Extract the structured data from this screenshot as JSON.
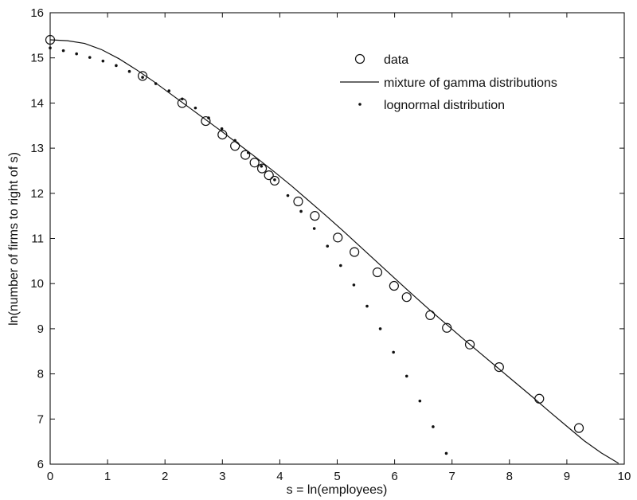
{
  "chart_data": {
    "type": "scatter",
    "title": "",
    "xlabel": "s = ln(employees)",
    "ylabel": "ln(number of firms to right of s)",
    "xlim": [
      0,
      10
    ],
    "ylim": [
      6,
      16
    ],
    "xticks": [
      "0",
      "1",
      "2",
      "3",
      "4",
      "5",
      "6",
      "7",
      "8",
      "9",
      "10"
    ],
    "yticks": [
      "6",
      "7",
      "8",
      "9",
      "10",
      "11",
      "12",
      "13",
      "14",
      "15",
      "16"
    ],
    "grid": false,
    "legend_position": "top-right",
    "legend": [
      "data",
      "mixture of gamma distributions",
      "lognormal distribution"
    ],
    "series": [
      {
        "name": "data",
        "style": "open-circle",
        "x": [
          0.0,
          1.61,
          2.3,
          2.71,
          3.0,
          3.22,
          3.4,
          3.56,
          3.69,
          3.81,
          3.91,
          4.32,
          4.61,
          5.01,
          5.3,
          5.7,
          5.99,
          6.21,
          6.62,
          6.91,
          7.31,
          7.82,
          8.52,
          9.21
        ],
        "y": [
          15.4,
          14.6,
          14.0,
          13.6,
          13.3,
          13.05,
          12.85,
          12.68,
          12.55,
          12.4,
          12.28,
          11.82,
          11.5,
          11.02,
          10.7,
          10.25,
          9.95,
          9.7,
          9.3,
          9.02,
          8.65,
          8.15,
          7.45,
          6.8
        ]
      },
      {
        "name": "mixture of gamma distributions",
        "style": "line",
        "x": [
          0.0,
          0.3,
          0.6,
          0.9,
          1.2,
          1.5,
          1.8,
          2.1,
          2.4,
          2.7,
          3.0,
          3.3,
          3.6,
          3.9,
          4.2,
          4.5,
          4.8,
          5.1,
          5.4,
          5.7,
          6.0,
          6.3,
          6.6,
          6.9,
          7.2,
          7.5,
          7.8,
          8.1,
          8.4,
          8.7,
          9.0,
          9.3,
          9.6,
          9.9
        ],
        "y": [
          15.4,
          15.38,
          15.32,
          15.18,
          14.98,
          14.74,
          14.48,
          14.2,
          13.92,
          13.64,
          13.36,
          13.07,
          12.78,
          12.48,
          12.17,
          11.84,
          11.51,
          11.17,
          10.82,
          10.47,
          10.12,
          9.77,
          9.43,
          9.1,
          8.77,
          8.45,
          8.13,
          7.81,
          7.49,
          7.16,
          6.84,
          6.52,
          6.25,
          6.02
        ]
      },
      {
        "name": "lognormal distribution",
        "style": "dot",
        "x": [
          0.0,
          0.23,
          0.46,
          0.69,
          0.92,
          1.15,
          1.38,
          1.61,
          1.84,
          2.07,
          2.3,
          2.53,
          2.76,
          2.99,
          3.22,
          3.45,
          3.68,
          3.91,
          4.14,
          4.37,
          4.6,
          4.83,
          5.06,
          5.29,
          5.52,
          5.75,
          5.98,
          6.21,
          6.44,
          6.67,
          6.9
        ],
        "y": [
          15.22,
          15.16,
          15.09,
          15.01,
          14.93,
          14.83,
          14.7,
          14.57,
          14.43,
          14.27,
          14.09,
          13.89,
          13.67,
          13.43,
          13.17,
          12.9,
          12.6,
          12.3,
          11.95,
          11.6,
          11.22,
          10.83,
          10.4,
          9.97,
          9.5,
          9.0,
          8.48,
          7.95,
          7.4,
          6.83,
          6.24
        ]
      }
    ]
  }
}
